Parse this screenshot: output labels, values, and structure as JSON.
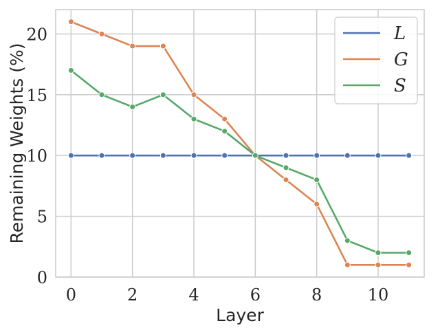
{
  "chart_data": {
    "type": "line",
    "xlabel": "Layer",
    "ylabel": "Remaining Weights (%)",
    "xlim": [
      -0.5,
      11.5
    ],
    "ylim": [
      0,
      22
    ],
    "x_ticks": [
      0,
      2,
      4,
      6,
      8,
      10
    ],
    "y_ticks": [
      0,
      5,
      10,
      15,
      20
    ],
    "grid": true,
    "legend_position": "top-right",
    "x": [
      0,
      1,
      2,
      3,
      4,
      5,
      6,
      7,
      8,
      9,
      10,
      11
    ],
    "series": [
      {
        "name": "L",
        "color": "#4c72b0",
        "values": [
          10,
          10,
          10,
          10,
          10,
          10,
          10,
          10,
          10,
          10,
          10,
          10
        ]
      },
      {
        "name": "G",
        "color": "#dd8452",
        "values": [
          21,
          20,
          19,
          19,
          15,
          13,
          10,
          8,
          6,
          1,
          1,
          1
        ]
      },
      {
        "name": "S",
        "color": "#55a868",
        "values": [
          17,
          15,
          14,
          15,
          13,
          12,
          10,
          9,
          8,
          3,
          2,
          2
        ]
      }
    ]
  }
}
